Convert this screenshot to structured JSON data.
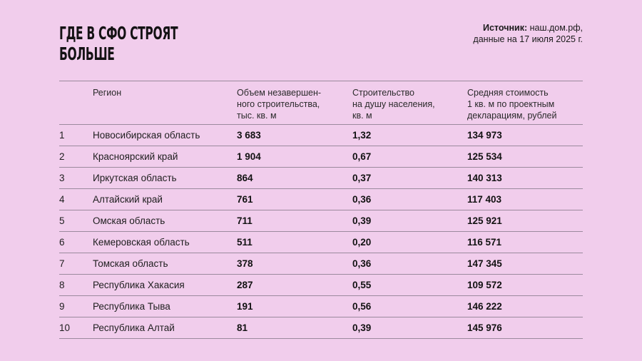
{
  "header": {
    "title_line1": "ГДЕ В СФО СТРОЯТ",
    "title_line2": "БОЛЬШЕ",
    "source_label": "Источник:",
    "source_value": " наш.дом.рф,",
    "source_date": "данные на 17 июля 2025 г."
  },
  "colors": {
    "background": "#f1cdec",
    "rule": "#9b8a9d",
    "text": "#1a1a1a"
  },
  "table": {
    "columns": [
      "",
      "Регион",
      "Объем незавершен-\nного строительства,\nтыс. кв. м",
      "Строительство\nна душу населения,\nкв. м",
      "Средняя стоимость\n1 кв. м по проектным\nдекларациям, рублей"
    ],
    "rows": [
      {
        "rank": "1",
        "region": "Новосибирская область",
        "volume": "3 683",
        "per_capita": "1,32",
        "avg_cost": "134 973"
      },
      {
        "rank": "2",
        "region": "Красноярский край",
        "volume": "1 904",
        "per_capita": "0,67",
        "avg_cost": "125 534"
      },
      {
        "rank": "3",
        "region": "Иркутская область",
        "volume": "864",
        "per_capita": "0,37",
        "avg_cost": "140 313"
      },
      {
        "rank": "4",
        "region": "Алтайский край",
        "volume": "761",
        "per_capita": "0,36",
        "avg_cost": "117 403"
      },
      {
        "rank": "5",
        "region": "Омская область",
        "volume": "711",
        "per_capita": "0,39",
        "avg_cost": "125 921"
      },
      {
        "rank": "6",
        "region": "Кемеровская область",
        "volume": "511",
        "per_capita": "0,20",
        "avg_cost": "116 571"
      },
      {
        "rank": "7",
        "region": "Томская область",
        "volume": "378",
        "per_capita": "0,36",
        "avg_cost": "147 345"
      },
      {
        "rank": "8",
        "region": "Республика Хакасия",
        "volume": "287",
        "per_capita": "0,55",
        "avg_cost": "109 572"
      },
      {
        "rank": "9",
        "region": "Республика Тыва",
        "volume": "191",
        "per_capita": "0,56",
        "avg_cost": "146 222"
      },
      {
        "rank": "10",
        "region": "Республика Алтай",
        "volume": "81",
        "per_capita": "0,39",
        "avg_cost": "145 976"
      }
    ]
  }
}
